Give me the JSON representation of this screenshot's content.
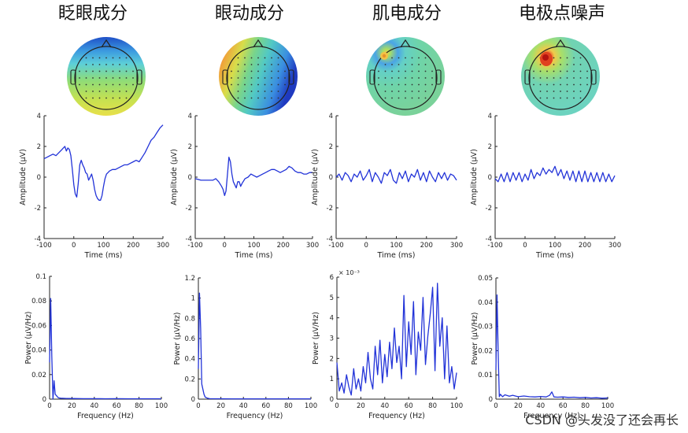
{
  "watermark": "CSDN @头发没了还会再长",
  "chart_data": [
    {
      "type": "line",
      "panel": "time",
      "title": "眨眼成分",
      "xlabel": "Time (ms)",
      "ylabel": "Amplitude (μV)",
      "xlim": [
        -100,
        300
      ],
      "ylim": [
        -4,
        4
      ],
      "xticks": [
        -100,
        0,
        100,
        200,
        300
      ],
      "yticks": [
        -4,
        -2,
        0,
        2,
        4
      ],
      "series": [
        {
          "x": [
            -100,
            -90,
            -80,
            -70,
            -60,
            -50,
            -40,
            -35,
            -30,
            -25,
            -20,
            -15,
            -10,
            -5,
            0,
            5,
            10,
            15,
            20,
            25,
            30,
            35,
            40,
            45,
            50,
            55,
            60,
            65,
            70,
            75,
            80,
            85,
            90,
            95,
            100,
            105,
            110,
            115,
            120,
            130,
            140,
            150,
            160,
            170,
            180,
            190,
            200,
            210,
            220,
            230,
            240,
            250,
            260,
            270,
            280,
            290,
            300
          ],
          "y": [
            1.2,
            1.3,
            1.4,
            1.5,
            1.4,
            1.6,
            1.8,
            1.9,
            2.0,
            1.7,
            1.9,
            1.8,
            1.4,
            0.5,
            -0.5,
            -1.1,
            -1.3,
            -0.4,
            0.8,
            1.1,
            0.8,
            0.6,
            0.3,
            0.2,
            -0.2,
            0.0,
            0.2,
            -0.2,
            -0.8,
            -1.2,
            -1.4,
            -1.5,
            -1.5,
            -1.2,
            -0.6,
            -0.1,
            0.2,
            0.3,
            0.4,
            0.5,
            0.5,
            0.6,
            0.7,
            0.8,
            0.8,
            0.9,
            1.0,
            1.1,
            1.0,
            1.3,
            1.6,
            2.0,
            2.4,
            2.6,
            2.9,
            3.2,
            3.4
          ]
        }
      ]
    },
    {
      "type": "line",
      "panel": "time",
      "title": "眼动成分",
      "xlabel": "Time (ms)",
      "ylabel": "Amplitude (μV)",
      "xlim": [
        -100,
        300
      ],
      "ylim": [
        -4,
        4
      ],
      "xticks": [
        -100,
        0,
        100,
        200,
        300
      ],
      "yticks": [
        -4,
        -2,
        0,
        2,
        4
      ],
      "series": [
        {
          "x": [
            -100,
            -80,
            -60,
            -40,
            -30,
            -20,
            -10,
            -5,
            0,
            5,
            10,
            15,
            20,
            25,
            30,
            35,
            40,
            45,
            50,
            55,
            60,
            70,
            80,
            90,
            100,
            110,
            120,
            130,
            140,
            150,
            160,
            170,
            180,
            190,
            200,
            210,
            220,
            230,
            240,
            250,
            260,
            270,
            280,
            290,
            300
          ],
          "y": [
            -0.1,
            -0.2,
            -0.2,
            -0.2,
            -0.1,
            -0.3,
            -0.6,
            -0.8,
            -1.2,
            -0.9,
            0.2,
            1.3,
            1.0,
            0.2,
            -0.3,
            -0.5,
            -0.7,
            -0.3,
            -0.3,
            -0.6,
            -0.4,
            -0.1,
            0.0,
            0.2,
            0.1,
            0.0,
            0.1,
            0.2,
            0.3,
            0.4,
            0.5,
            0.5,
            0.4,
            0.3,
            0.4,
            0.5,
            0.7,
            0.6,
            0.4,
            0.3,
            0.3,
            0.2,
            0.2,
            0.3,
            0.3
          ]
        }
      ]
    },
    {
      "type": "line",
      "panel": "time",
      "title": "肌电成分",
      "xlabel": "Time (ms)",
      "ylabel": "Amplitude (μV)",
      "xlim": [
        -100,
        300
      ],
      "ylim": [
        -4,
        4
      ],
      "xticks": [
        -100,
        0,
        100,
        200,
        300
      ],
      "yticks": [
        -4,
        -2,
        0,
        2,
        4
      ],
      "series": [
        {
          "x": [
            -100,
            -90,
            -80,
            -70,
            -60,
            -50,
            -40,
            -30,
            -20,
            -10,
            0,
            10,
            20,
            30,
            40,
            50,
            60,
            70,
            80,
            90,
            100,
            110,
            120,
            130,
            140,
            150,
            160,
            170,
            180,
            190,
            200,
            210,
            220,
            230,
            240,
            250,
            260,
            270,
            280,
            290,
            300
          ],
          "y": [
            0.0,
            0.2,
            -0.2,
            0.3,
            0.1,
            -0.3,
            0.2,
            0.0,
            0.4,
            -0.2,
            0.1,
            0.5,
            -0.3,
            0.3,
            0.0,
            -0.4,
            0.3,
            0.1,
            0.5,
            -0.2,
            -0.4,
            0.3,
            -0.1,
            0.4,
            -0.3,
            0.2,
            0.0,
            0.5,
            -0.2,
            0.3,
            -0.3,
            0.4,
            0.0,
            -0.3,
            0.3,
            -0.1,
            0.3,
            -0.2,
            0.2,
            0.1,
            -0.2
          ]
        }
      ]
    },
    {
      "type": "line",
      "panel": "time",
      "title": "电极点噪声",
      "xlabel": "Time (ms)",
      "ylabel": "Amplitude (μV)",
      "xlim": [
        -100,
        300
      ],
      "ylim": [
        -4,
        4
      ],
      "xticks": [
        -100,
        0,
        100,
        200,
        300
      ],
      "yticks": [
        -4,
        -2,
        0,
        2,
        4
      ],
      "series": [
        {
          "x": [
            -100,
            -90,
            -80,
            -70,
            -60,
            -50,
            -40,
            -30,
            -20,
            -10,
            0,
            10,
            20,
            30,
            40,
            50,
            60,
            70,
            80,
            90,
            100,
            110,
            120,
            130,
            140,
            150,
            160,
            170,
            180,
            190,
            200,
            210,
            220,
            230,
            240,
            250,
            260,
            270,
            280,
            290,
            300
          ],
          "y": [
            -0.1,
            -0.3,
            0.2,
            -0.3,
            0.3,
            -0.3,
            0.3,
            -0.2,
            0.3,
            -0.3,
            0.2,
            -0.2,
            0.5,
            -0.1,
            0.3,
            0.1,
            0.6,
            0.2,
            0.5,
            0.3,
            0.7,
            0.1,
            0.5,
            -0.1,
            0.4,
            -0.2,
            0.4,
            -0.3,
            0.4,
            -0.3,
            0.4,
            -0.3,
            0.3,
            -0.3,
            0.3,
            -0.3,
            0.3,
            -0.3,
            0.2,
            -0.3,
            0.1
          ]
        }
      ]
    },
    {
      "type": "line",
      "panel": "freq",
      "xlabel": "Frequency (Hz)",
      "ylabel": "Power (μV/Hz)",
      "xlim": [
        0,
        100
      ],
      "ylim": [
        0,
        0.1
      ],
      "xticks": [
        0,
        20,
        40,
        60,
        80,
        100
      ],
      "yticks": [
        0,
        0.02,
        0.04,
        0.06,
        0.08,
        0.1
      ],
      "series": [
        {
          "x": [
            0,
            1,
            2,
            3,
            4,
            5,
            6,
            7,
            8,
            10,
            15,
            20,
            30,
            40,
            50,
            60,
            70,
            80,
            90,
            100
          ],
          "y": [
            0.03,
            0.082,
            0.035,
            0.0,
            0.015,
            0.004,
            0.003,
            0.002,
            0.001,
            0.0008,
            0.0006,
            0.0005,
            0.0004,
            0.0004,
            0.0003,
            0.0004,
            0.0003,
            0.0003,
            0.0003,
            0.0003
          ]
        }
      ]
    },
    {
      "type": "line",
      "panel": "freq",
      "xlabel": "Frequency (Hz)",
      "ylabel": "Power (μV/Hz)",
      "xlim": [
        0,
        100
      ],
      "ylim": [
        0,
        1.2
      ],
      "xticks": [
        0,
        20,
        40,
        60,
        80,
        100
      ],
      "yticks": [
        0,
        0.2,
        0.4,
        0.6,
        0.8,
        1,
        1.2
      ],
      "series": [
        {
          "x": [
            0,
            1,
            2,
            3,
            4,
            5,
            6,
            8,
            10,
            15,
            20,
            30,
            40,
            50,
            60,
            70,
            80,
            90,
            100
          ],
          "y": [
            0.3,
            1.05,
            0.7,
            0.15,
            0.1,
            0.05,
            0.02,
            0.01,
            0.005,
            0.004,
            0.004,
            0.003,
            0.003,
            0.003,
            0.003,
            0.003,
            0.003,
            0.003,
            0.003
          ]
        }
      ]
    },
    {
      "type": "line",
      "panel": "freq",
      "xlabel": "Frequency (Hz)",
      "ylabel": "Power (μV/Hz)",
      "exponent_label": "× 10⁻³",
      "xlim": [
        0,
        100
      ],
      "ylim": [
        0,
        6
      ],
      "xticks": [
        0,
        20,
        40,
        60,
        80,
        100
      ],
      "yticks": [
        0,
        1,
        2,
        3,
        4,
        5,
        6
      ],
      "series": [
        {
          "x": [
            0,
            2,
            4,
            6,
            8,
            10,
            12,
            14,
            16,
            18,
            20,
            22,
            24,
            26,
            28,
            30,
            32,
            34,
            36,
            38,
            40,
            42,
            44,
            46,
            48,
            50,
            52,
            54,
            56,
            58,
            60,
            62,
            64,
            66,
            68,
            70,
            72,
            74,
            76,
            78,
            80,
            82,
            84,
            86,
            88,
            90,
            92,
            94,
            96,
            98,
            100
          ],
          "y": [
            1.8,
            0.4,
            0.8,
            0.3,
            1.2,
            0.6,
            0.2,
            1.5,
            0.5,
            1.0,
            0.4,
            1.6,
            0.8,
            2.3,
            1.0,
            0.5,
            2.6,
            1.2,
            2.9,
            0.8,
            2.2,
            1.1,
            2.8,
            1.5,
            3.5,
            1.8,
            2.6,
            1.0,
            5.1,
            1.6,
            3.8,
            2.2,
            4.8,
            1.2,
            3.3,
            2.4,
            5.0,
            1.7,
            3.1,
            4.2,
            5.5,
            1.4,
            5.7,
            2.6,
            4.0,
            1.0,
            3.6,
            0.8,
            1.6,
            0.5,
            1.3
          ]
        }
      ]
    },
    {
      "type": "line",
      "panel": "freq",
      "xlabel": "Frequency (Hz)",
      "ylabel": "Power (μV/Hz)",
      "xlim": [
        0,
        100
      ],
      "ylim": [
        0,
        0.05
      ],
      "xticks": [
        0,
        20,
        40,
        60,
        80,
        100
      ],
      "yticks": [
        0,
        0.01,
        0.02,
        0.03,
        0.04,
        0.05
      ],
      "series": [
        {
          "x": [
            0,
            1,
            2,
            3,
            4,
            5,
            6,
            8,
            10,
            12,
            15,
            18,
            20,
            25,
            30,
            35,
            40,
            45,
            48,
            50,
            52,
            55,
            60,
            65,
            70,
            75,
            80,
            85,
            90,
            95,
            100
          ],
          "y": [
            0.012,
            0.043,
            0.02,
            0.001,
            0.002,
            0.0015,
            0.001,
            0.0018,
            0.0015,
            0.0012,
            0.0016,
            0.0012,
            0.001,
            0.0013,
            0.001,
            0.0009,
            0.0011,
            0.0009,
            0.0016,
            0.003,
            0.0009,
            0.0008,
            0.0009,
            0.0007,
            0.0008,
            0.0006,
            0.0007,
            0.0005,
            0.0006,
            0.0004,
            0.0005
          ]
        }
      ]
    }
  ]
}
